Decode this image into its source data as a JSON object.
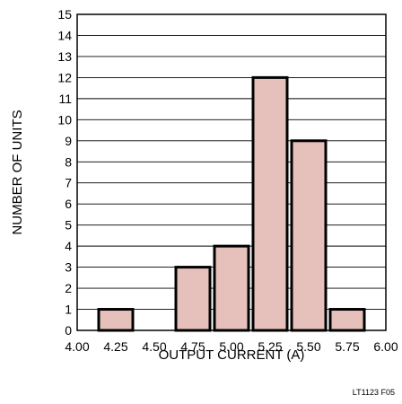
{
  "chart_data": {
    "type": "bar",
    "categories": [
      "4.25",
      "4.50",
      "4.75",
      "5.00",
      "5.25",
      "5.50",
      "5.75"
    ],
    "x": [
      4.25,
      4.5,
      4.75,
      5.0,
      5.25,
      5.5,
      5.75
    ],
    "values": [
      1,
      0,
      3,
      4,
      12,
      9,
      1
    ],
    "bin_width": 0.25,
    "title": "",
    "xlabel": "OUTPUT CURRENT (A)",
    "ylabel": "NUMBER OF UNITS",
    "xlim": [
      4.0,
      6.0
    ],
    "ylim": [
      0,
      15
    ],
    "x_ticks": [
      "4.00",
      "4.25",
      "4.50",
      "4.75",
      "5.00",
      "5.25",
      "5.50",
      "5.75",
      "6.00"
    ],
    "y_ticks": [
      "0",
      "1",
      "2",
      "3",
      "4",
      "5",
      "6",
      "7",
      "8",
      "9",
      "10",
      "11",
      "12",
      "13",
      "14",
      "15"
    ],
    "grid": "horizontal",
    "bar_color": "#e6c1bb",
    "bar_edge_color": "#000000"
  },
  "figure_id": "LT1123 F05"
}
